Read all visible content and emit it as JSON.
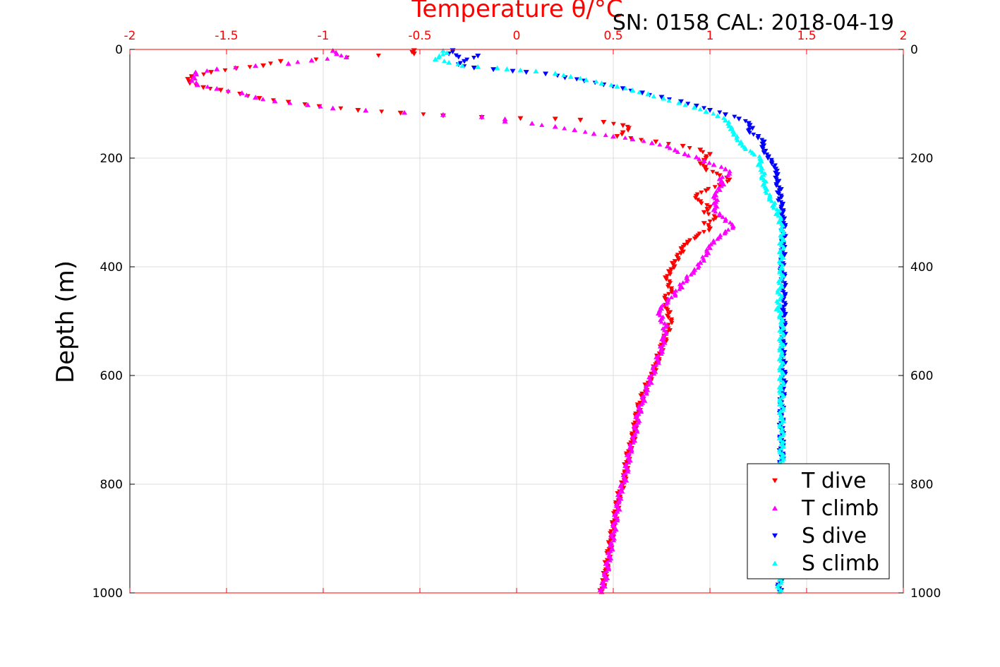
{
  "chart_data": {
    "type": "scatter",
    "title": "Temperature θ/°C",
    "header_text": "SN: 0158  CAL: 2018-04-19",
    "ylabel": "Depth (m)",
    "xlim": [
      -2,
      2
    ],
    "ylim": [
      0,
      1000
    ],
    "y_reversed": true,
    "x_ticks": [
      "-2",
      "-1.5",
      "-1",
      "-0.5",
      "0",
      "0.5",
      "1",
      "1.5",
      "2"
    ],
    "y_ticks": [
      "0",
      "200",
      "400",
      "600",
      "800",
      "1000"
    ],
    "grid": true,
    "legend_position": "bottom-right",
    "colors": {
      "title": "#ff0000",
      "top_axis": "#ff0000",
      "axis": "#000000",
      "grid": "#dddddd"
    },
    "series": [
      {
        "name": "T dive",
        "marker": "triangle-down",
        "color": "#ff0000",
        "points": [
          [
            -0.53,
            2
          ],
          [
            -0.53,
            8
          ],
          [
            -1.22,
            22
          ],
          [
            -1.31,
            30
          ],
          [
            -1.45,
            35
          ],
          [
            -1.58,
            42
          ],
          [
            -1.68,
            50
          ],
          [
            -1.7,
            55
          ],
          [
            -1.69,
            62
          ],
          [
            -1.62,
            70
          ],
          [
            -1.53,
            75
          ],
          [
            -1.43,
            82
          ],
          [
            -1.33,
            90
          ],
          [
            -1.18,
            97
          ],
          [
            -1.02,
            105
          ],
          [
            -0.82,
            112
          ],
          [
            -0.6,
            117
          ],
          [
            -0.38,
            122
          ],
          [
            -0.18,
            125
          ],
          [
            0.02,
            127
          ],
          [
            0.2,
            128
          ],
          [
            0.33,
            130
          ],
          [
            0.45,
            134
          ],
          [
            0.55,
            140
          ],
          [
            0.58,
            145
          ],
          [
            0.55,
            153
          ],
          [
            0.52,
            160
          ],
          [
            0.72,
            170
          ],
          [
            0.86,
            178
          ],
          [
            0.95,
            185
          ],
          [
            1.0,
            193
          ],
          [
            0.98,
            200
          ],
          [
            0.95,
            210
          ],
          [
            0.98,
            222
          ],
          [
            1.05,
            232
          ],
          [
            1.1,
            240
          ],
          [
            1.05,
            250
          ],
          [
            0.98,
            260
          ],
          [
            0.93,
            270
          ],
          [
            0.95,
            280
          ],
          [
            1.0,
            290
          ],
          [
            0.97,
            300
          ],
          [
            1.03,
            310
          ],
          [
            0.97,
            320
          ],
          [
            1.0,
            330
          ],
          [
            0.93,
            345
          ],
          [
            0.87,
            360
          ],
          [
            0.85,
            375
          ],
          [
            0.82,
            390
          ],
          [
            0.8,
            405
          ],
          [
            0.77,
            420
          ],
          [
            0.8,
            440
          ],
          [
            0.77,
            460
          ],
          [
            0.78,
            480
          ],
          [
            0.8,
            500
          ],
          [
            0.78,
            520
          ],
          [
            0.76,
            540
          ],
          [
            0.74,
            560
          ],
          [
            0.72,
            580
          ],
          [
            0.7,
            600
          ],
          [
            0.67,
            620
          ],
          [
            0.65,
            640
          ],
          [
            0.63,
            660
          ],
          [
            0.62,
            680
          ],
          [
            0.61,
            700
          ],
          [
            0.6,
            720
          ],
          [
            0.58,
            740
          ],
          [
            0.57,
            760
          ],
          [
            0.56,
            780
          ],
          [
            0.55,
            800
          ],
          [
            0.53,
            820
          ],
          [
            0.52,
            840
          ],
          [
            0.51,
            860
          ],
          [
            0.5,
            880
          ],
          [
            0.49,
            900
          ],
          [
            0.48,
            920
          ],
          [
            0.47,
            940
          ],
          [
            0.46,
            960
          ],
          [
            0.45,
            980
          ],
          [
            0.44,
            998
          ]
        ]
      },
      {
        "name": "T climb",
        "marker": "triangle-up",
        "color": "#ff00ff",
        "points": [
          [
            -0.95,
            2
          ],
          [
            -0.93,
            8
          ],
          [
            -0.88,
            14
          ],
          [
            -1.06,
            20
          ],
          [
            -1.18,
            26
          ],
          [
            -1.35,
            30
          ],
          [
            -1.55,
            36
          ],
          [
            -1.66,
            42
          ],
          [
            -1.67,
            50
          ],
          [
            -1.68,
            57
          ],
          [
            -1.65,
            65
          ],
          [
            -1.55,
            72
          ],
          [
            -1.42,
            80
          ],
          [
            -1.35,
            88
          ],
          [
            -1.25,
            95
          ],
          [
            -1.08,
            102
          ],
          [
            -0.95,
            108
          ],
          [
            -0.78,
            112
          ],
          [
            -0.58,
            116
          ],
          [
            -0.38,
            120
          ],
          [
            -0.18,
            124
          ],
          [
            -0.06,
            128
          ],
          [
            -0.06,
            132
          ],
          [
            0.08,
            136
          ],
          [
            0.2,
            142
          ],
          [
            0.3,
            148
          ],
          [
            0.4,
            155
          ],
          [
            0.5,
            160
          ],
          [
            0.6,
            165
          ],
          [
            0.7,
            172
          ],
          [
            0.78,
            178
          ],
          [
            0.82,
            185
          ],
          [
            0.87,
            192
          ],
          [
            0.93,
            198
          ],
          [
            0.97,
            205
          ],
          [
            1.02,
            212
          ],
          [
            1.08,
            220
          ],
          [
            1.1,
            228
          ],
          [
            1.05,
            238
          ],
          [
            1.07,
            248
          ],
          [
            1.05,
            258
          ],
          [
            1.03,
            268
          ],
          [
            1.03,
            280
          ],
          [
            1.02,
            295
          ],
          [
            1.05,
            305
          ],
          [
            1.08,
            315
          ],
          [
            1.12,
            325
          ],
          [
            1.08,
            335
          ],
          [
            1.05,
            345
          ],
          [
            1.02,
            355
          ],
          [
            1.0,
            365
          ],
          [
            0.98,
            378
          ],
          [
            0.95,
            392
          ],
          [
            0.92,
            405
          ],
          [
            0.88,
            420
          ],
          [
            0.85,
            435
          ],
          [
            0.82,
            450
          ],
          [
            0.78,
            465
          ],
          [
            0.74,
            480
          ],
          [
            0.75,
            495
          ],
          [
            0.77,
            510
          ],
          [
            0.76,
            530
          ],
          [
            0.75,
            550
          ],
          [
            0.73,
            570
          ],
          [
            0.71,
            590
          ],
          [
            0.69,
            610
          ],
          [
            0.67,
            630
          ],
          [
            0.65,
            650
          ],
          [
            0.63,
            670
          ],
          [
            0.62,
            690
          ],
          [
            0.61,
            710
          ],
          [
            0.59,
            730
          ],
          [
            0.58,
            750
          ],
          [
            0.57,
            770
          ],
          [
            0.56,
            790
          ],
          [
            0.54,
            810
          ],
          [
            0.53,
            830
          ],
          [
            0.52,
            850
          ],
          [
            0.51,
            870
          ],
          [
            0.5,
            890
          ],
          [
            0.49,
            910
          ],
          [
            0.48,
            930
          ],
          [
            0.47,
            950
          ],
          [
            0.46,
            970
          ],
          [
            0.45,
            985
          ],
          [
            0.44,
            998
          ]
        ]
      },
      {
        "name": "S dive",
        "marker": "triangle-down",
        "color": "#0000ff",
        "points": [
          [
            -0.33,
            2
          ],
          [
            -0.35,
            8
          ],
          [
            -0.3,
            14
          ],
          [
            -0.2,
            12
          ],
          [
            -0.27,
            22
          ],
          [
            -0.3,
            28
          ],
          [
            -0.22,
            34
          ],
          [
            -0.12,
            37
          ],
          [
            -0.02,
            40
          ],
          [
            0.05,
            42
          ],
          [
            0.15,
            45
          ],
          [
            0.25,
            52
          ],
          [
            0.35,
            58
          ],
          [
            0.45,
            65
          ],
          [
            0.55,
            72
          ],
          [
            0.65,
            80
          ],
          [
            0.75,
            88
          ],
          [
            0.85,
            96
          ],
          [
            0.93,
            104
          ],
          [
            1.0,
            112
          ],
          [
            1.08,
            120
          ],
          [
            1.15,
            128
          ],
          [
            1.2,
            136
          ],
          [
            1.22,
            145
          ],
          [
            1.2,
            150
          ],
          [
            1.25,
            160
          ],
          [
            1.28,
            170
          ],
          [
            1.27,
            180
          ],
          [
            1.28,
            190
          ],
          [
            1.3,
            200
          ],
          [
            1.32,
            210
          ],
          [
            1.34,
            220
          ],
          [
            1.35,
            230
          ],
          [
            1.35,
            245
          ],
          [
            1.36,
            260
          ],
          [
            1.36,
            275
          ],
          [
            1.37,
            290
          ],
          [
            1.37,
            305
          ],
          [
            1.38,
            320
          ],
          [
            1.38,
            340
          ],
          [
            1.38,
            360
          ],
          [
            1.38,
            380
          ],
          [
            1.37,
            400
          ],
          [
            1.38,
            420
          ],
          [
            1.38,
            440
          ],
          [
            1.38,
            460
          ],
          [
            1.38,
            480
          ],
          [
            1.38,
            500
          ],
          [
            1.38,
            520
          ],
          [
            1.38,
            540
          ],
          [
            1.38,
            560
          ],
          [
            1.38,
            580
          ],
          [
            1.38,
            600
          ],
          [
            1.38,
            625
          ],
          [
            1.37,
            650
          ],
          [
            1.37,
            675
          ],
          [
            1.37,
            700
          ],
          [
            1.37,
            725
          ],
          [
            1.37,
            750
          ],
          [
            1.37,
            775
          ],
          [
            1.37,
            800
          ],
          [
            1.37,
            825
          ],
          [
            1.37,
            850
          ],
          [
            1.37,
            875
          ],
          [
            1.37,
            900
          ],
          [
            1.37,
            925
          ],
          [
            1.37,
            950
          ],
          [
            1.36,
            975
          ],
          [
            1.36,
            998
          ]
        ]
      },
      {
        "name": "S climb",
        "marker": "triangle-up",
        "color": "#00ffff",
        "points": [
          [
            -0.38,
            2
          ],
          [
            -0.36,
            6
          ],
          [
            -0.4,
            12
          ],
          [
            -0.42,
            18
          ],
          [
            -0.35,
            24
          ],
          [
            -0.28,
            30
          ],
          [
            -0.2,
            32
          ],
          [
            -0.1,
            34
          ],
          [
            -0.05,
            36
          ],
          [
            0.02,
            38
          ],
          [
            0.1,
            40
          ],
          [
            0.2,
            44
          ],
          [
            0.28,
            50
          ],
          [
            0.36,
            56
          ],
          [
            0.44,
            62
          ],
          [
            0.52,
            68
          ],
          [
            0.6,
            75
          ],
          [
            0.68,
            82
          ],
          [
            0.76,
            90
          ],
          [
            0.84,
            98
          ],
          [
            0.92,
            106
          ],
          [
            0.98,
            114
          ],
          [
            1.04,
            122
          ],
          [
            1.08,
            130
          ],
          [
            1.1,
            140
          ],
          [
            1.12,
            150
          ],
          [
            1.14,
            160
          ],
          [
            1.16,
            170
          ],
          [
            1.18,
            180
          ],
          [
            1.22,
            190
          ],
          [
            1.26,
            200
          ],
          [
            1.25,
            212
          ],
          [
            1.27,
            225
          ],
          [
            1.28,
            240
          ],
          [
            1.29,
            255
          ],
          [
            1.31,
            270
          ],
          [
            1.33,
            285
          ],
          [
            1.35,
            300
          ],
          [
            1.36,
            315
          ],
          [
            1.37,
            330
          ],
          [
            1.37,
            345
          ],
          [
            1.37,
            360
          ],
          [
            1.37,
            380
          ],
          [
            1.37,
            400
          ],
          [
            1.37,
            420
          ],
          [
            1.36,
            440
          ],
          [
            1.36,
            460
          ],
          [
            1.35,
            475
          ],
          [
            1.36,
            490
          ],
          [
            1.37,
            505
          ],
          [
            1.37,
            520
          ],
          [
            1.37,
            540
          ],
          [
            1.37,
            560
          ],
          [
            1.37,
            580
          ],
          [
            1.37,
            600
          ],
          [
            1.37,
            625
          ],
          [
            1.37,
            650
          ],
          [
            1.37,
            675
          ],
          [
            1.37,
            700
          ],
          [
            1.37,
            725
          ],
          [
            1.37,
            750
          ],
          [
            1.37,
            775
          ],
          [
            1.37,
            800
          ],
          [
            1.37,
            825
          ],
          [
            1.37,
            850
          ],
          [
            1.36,
            875
          ],
          [
            1.36,
            900
          ],
          [
            1.36,
            925
          ],
          [
            1.36,
            950
          ],
          [
            1.36,
            975
          ],
          [
            1.36,
            998
          ]
        ]
      }
    ]
  }
}
